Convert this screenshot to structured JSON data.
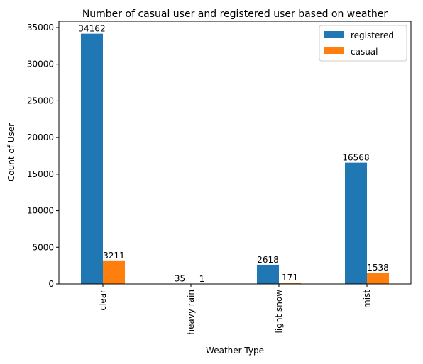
{
  "chart_data": {
    "type": "bar",
    "title": "Number of casual user and registered user based on weather",
    "xlabel": "Weather Type",
    "ylabel": "Count of User",
    "categories": [
      "clear",
      "heavy rain",
      "light snow",
      "mist"
    ],
    "series": [
      {
        "name": "registered",
        "values": [
          34162,
          35,
          2618,
          16568
        ],
        "color": "#1f77b4"
      },
      {
        "name": "casual",
        "values": [
          3211,
          1,
          171,
          1538
        ],
        "color": "#ff7f0e"
      }
    ],
    "data_labels": [
      [
        "34162",
        "35",
        "2618",
        "16568"
      ],
      [
        "3211",
        "1",
        "171",
        "1538"
      ]
    ],
    "yticks": [
      "0",
      "5000",
      "10000",
      "15000",
      "20000",
      "25000",
      "30000",
      "35000"
    ],
    "ylim": [
      0,
      35870
    ],
    "grid": false,
    "legend_position": "upper right"
  }
}
